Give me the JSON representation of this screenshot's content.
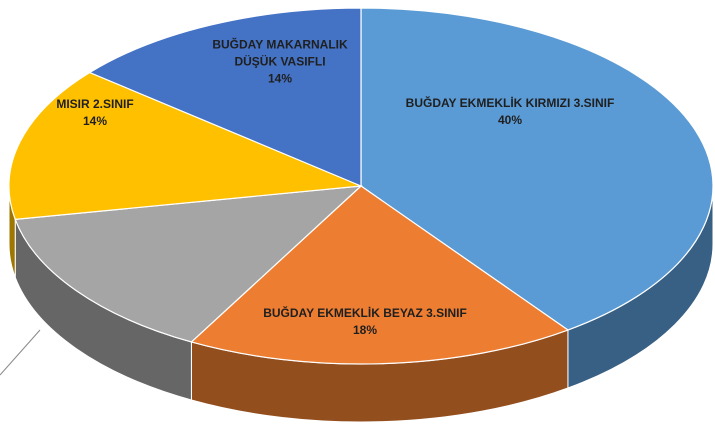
{
  "chart_data": {
    "type": "pie",
    "categories": [
      "BUĞDAY EKMEKLİK KIRMIZI 3.SINIF",
      "BUĞDAY EKMEKLİK BEYAZ 3.SINIF",
      null,
      "MISIR 2.SINIF",
      "BUĞDAY MAKARNALIK DÜŞÜK VASIFLI"
    ],
    "values": [
      40,
      18,
      14,
      14,
      14
    ],
    "value_labels": [
      "40%",
      "18%",
      null,
      "14%",
      "14%"
    ],
    "colors": [
      "#5b9bd5",
      "#ed7d31",
      "#a5a5a5",
      "#ffc000",
      "#4472c4"
    ]
  }
}
